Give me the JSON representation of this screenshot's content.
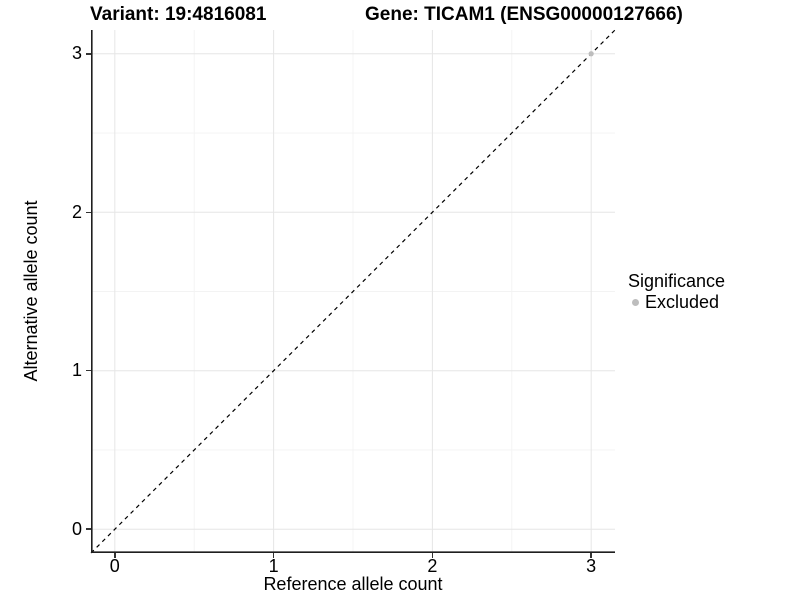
{
  "figure": {
    "titles": {
      "left": "Variant: 19:4816081",
      "right": "Gene: TICAM1 (ENSG00000127666)"
    },
    "axes": {
      "x_label": "Reference allele count",
      "y_label": "Alternative allele count"
    },
    "legend": {
      "title": "Significance",
      "entries": [
        {
          "label": "Excluded",
          "color": "#bdbdbd"
        }
      ]
    }
  },
  "chart_data": {
    "type": "scatter",
    "title": "Variant: 19:4816081   Gene: TICAM1 (ENSG00000127666)",
    "xlabel": "Reference allele count",
    "ylabel": "Alternative allele count",
    "xlim": [
      -0.15,
      3.15
    ],
    "ylim": [
      -0.15,
      3.15
    ],
    "x_ticks": [
      0,
      1,
      2,
      3
    ],
    "y_ticks": [
      0,
      1,
      2,
      3
    ],
    "x_minor_ticks": [
      0.5,
      1.5,
      2.5
    ],
    "y_minor_ticks": [
      0.5,
      1.5,
      2.5
    ],
    "grid": "major+minor",
    "legend_position": "right",
    "legend_title": "Significance",
    "series": [
      {
        "name": "Excluded",
        "color": "#bdbdbd",
        "points": [
          {
            "x": 3,
            "y": 3
          }
        ]
      }
    ],
    "reference_line": {
      "kind": "identity y=x",
      "style": "dashed",
      "color": "#000000",
      "x0": -0.15,
      "y0": -0.15,
      "x1": 3.15,
      "y1": 3.15
    },
    "colors": {
      "background": "#ffffff",
      "grid_major": "#e6e6e6",
      "grid_minor": "#f3f3f3",
      "axis_line": "#1f1f1f",
      "tick_mark": "#333333",
      "point": "#bdbdbd",
      "text": "#000000"
    }
  }
}
